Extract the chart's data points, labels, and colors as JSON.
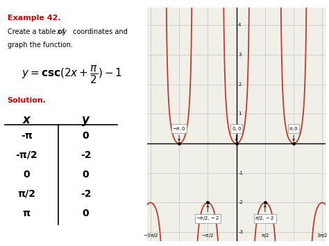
{
  "title_example": "Example 42.",
  "title_desc": "Create a table of ",
  "title_desc_italic": "x-y",
  "title_desc2": " coordinates and graph the function.",
  "solution_label": "Solution.",
  "table_x_header": "x",
  "table_y_header": "y",
  "table_data": [
    [
      "-π",
      "0"
    ],
    [
      "-π/2",
      "-2"
    ],
    [
      "0",
      "0"
    ],
    [
      "π/2",
      "-2"
    ],
    [
      "π",
      "0"
    ]
  ],
  "graph_xlim": [
    -4.9,
    4.9
  ],
  "graph_ylim": [
    -3.3,
    4.6
  ],
  "curve_color": "#c0392b",
  "grid_color": "#cccccc",
  "bg_color": "#f0f0e8",
  "axis_color": "#000000",
  "label_box_color": "#ffffff",
  "label_box_edge": "#888888",
  "example_color": "#cc0000",
  "solution_color": "#cc0000",
  "text_color": "#000000"
}
